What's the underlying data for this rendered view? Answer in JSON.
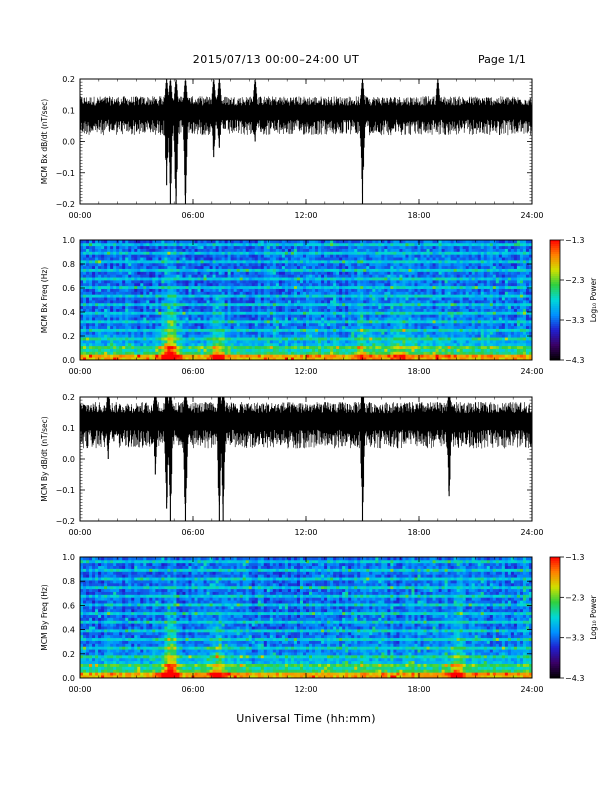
{
  "header": {
    "title": "2015/07/13  00:00–24:00 UT",
    "page": "Page 1/1"
  },
  "xaxis_title": "Universal Time (hh:mm)",
  "colors": {
    "trace": "#000000",
    "frame": "#000000",
    "colormap": [
      "#000000",
      "#3a0066",
      "#2020d0",
      "#0090ff",
      "#00d8d8",
      "#30d040",
      "#d0e000",
      "#ff8000",
      "#ff0000"
    ]
  },
  "chart_data": [
    {
      "type": "line",
      "ylabel": "MCM Bx dB/dt (nT/sec)",
      "x_ticks": [
        "00:00",
        "06:00",
        "12:00",
        "18:00",
        "24:00"
      ],
      "x_range_hours": [
        0,
        24
      ],
      "y_ticks": [
        "0.2",
        "0.1",
        "0.0",
        "−0.1",
        "−0.2"
      ],
      "ylim": [
        -0.2,
        0.2
      ],
      "baseline": 0.1,
      "noise_amplitude": 0.05,
      "events": [
        {
          "t": 4.6,
          "min": -0.14
        },
        {
          "t": 4.8,
          "min": -0.2
        },
        {
          "t": 5.1,
          "min": -0.2
        },
        {
          "t": 5.6,
          "min": -0.2
        },
        {
          "t": 7.1,
          "min": -0.05
        },
        {
          "t": 7.4,
          "min": -0.02
        },
        {
          "t": 9.3,
          "min": 0.0
        },
        {
          "t": 15.0,
          "min": -0.2
        },
        {
          "t": 19.0,
          "min": 0.05
        }
      ]
    },
    {
      "type": "heatmap",
      "ylabel": "MCM Bx Freq (Hz)",
      "x_ticks": [
        "00:00",
        "06:00",
        "12:00",
        "18:00",
        "24:00"
      ],
      "y_ticks": [
        "1.0",
        "0.8",
        "0.6",
        "0.4",
        "0.2",
        "0.0"
      ],
      "ylim": [
        0,
        1.0
      ],
      "colorbar": {
        "label": "Log₁₀ Power",
        "ticks": [
          "−1.3",
          "−2.3",
          "−3.3",
          "−4.3"
        ],
        "range": [
          -4.3,
          -1.3
        ]
      },
      "activity": [
        {
          "t": 4.8,
          "level": 1.0
        },
        {
          "t": 7.3,
          "level": 0.6
        },
        {
          "t": 15.0,
          "level": 0.3
        },
        {
          "t": 17.0,
          "level": 0.3
        }
      ]
    },
    {
      "type": "line",
      "ylabel": "MCM By dB/dt (nT/sec)",
      "x_ticks": [
        "00:00",
        "06:00",
        "12:00",
        "18:00",
        "24:00"
      ],
      "x_range_hours": [
        0,
        24
      ],
      "y_ticks": [
        "0.2",
        "0.1",
        "0.0",
        "−0.1",
        "−0.2"
      ],
      "ylim": [
        -0.2,
        0.2
      ],
      "baseline": 0.13,
      "noise_amplitude": 0.06,
      "events": [
        {
          "t": 4.0,
          "min": -0.05
        },
        {
          "t": 4.6,
          "min": -0.16
        },
        {
          "t": 4.8,
          "min": -0.2
        },
        {
          "t": 5.6,
          "min": -0.2
        },
        {
          "t": 7.4,
          "min": -0.2
        },
        {
          "t": 7.6,
          "min": -0.2
        },
        {
          "t": 15.0,
          "min": -0.2
        },
        {
          "t": 19.6,
          "min": -0.12
        },
        {
          "t": 1.5,
          "min": 0.0
        }
      ]
    },
    {
      "type": "heatmap",
      "ylabel": "MCM By Freq (Hz)",
      "x_ticks": [
        "00:00",
        "06:00",
        "12:00",
        "18:00",
        "24:00"
      ],
      "y_ticks": [
        "1.0",
        "0.8",
        "0.6",
        "0.4",
        "0.2",
        "0.0"
      ],
      "ylim": [
        0,
        1.0
      ],
      "colorbar": {
        "label": "Log₁₀ Power",
        "ticks": [
          "−1.3",
          "−2.3",
          "−3.3",
          "−4.3"
        ],
        "range": [
          -4.3,
          -1.3
        ]
      },
      "activity": [
        {
          "t": 4.8,
          "level": 1.0
        },
        {
          "t": 7.3,
          "level": 0.5
        },
        {
          "t": 20.0,
          "level": 0.5
        }
      ]
    }
  ]
}
